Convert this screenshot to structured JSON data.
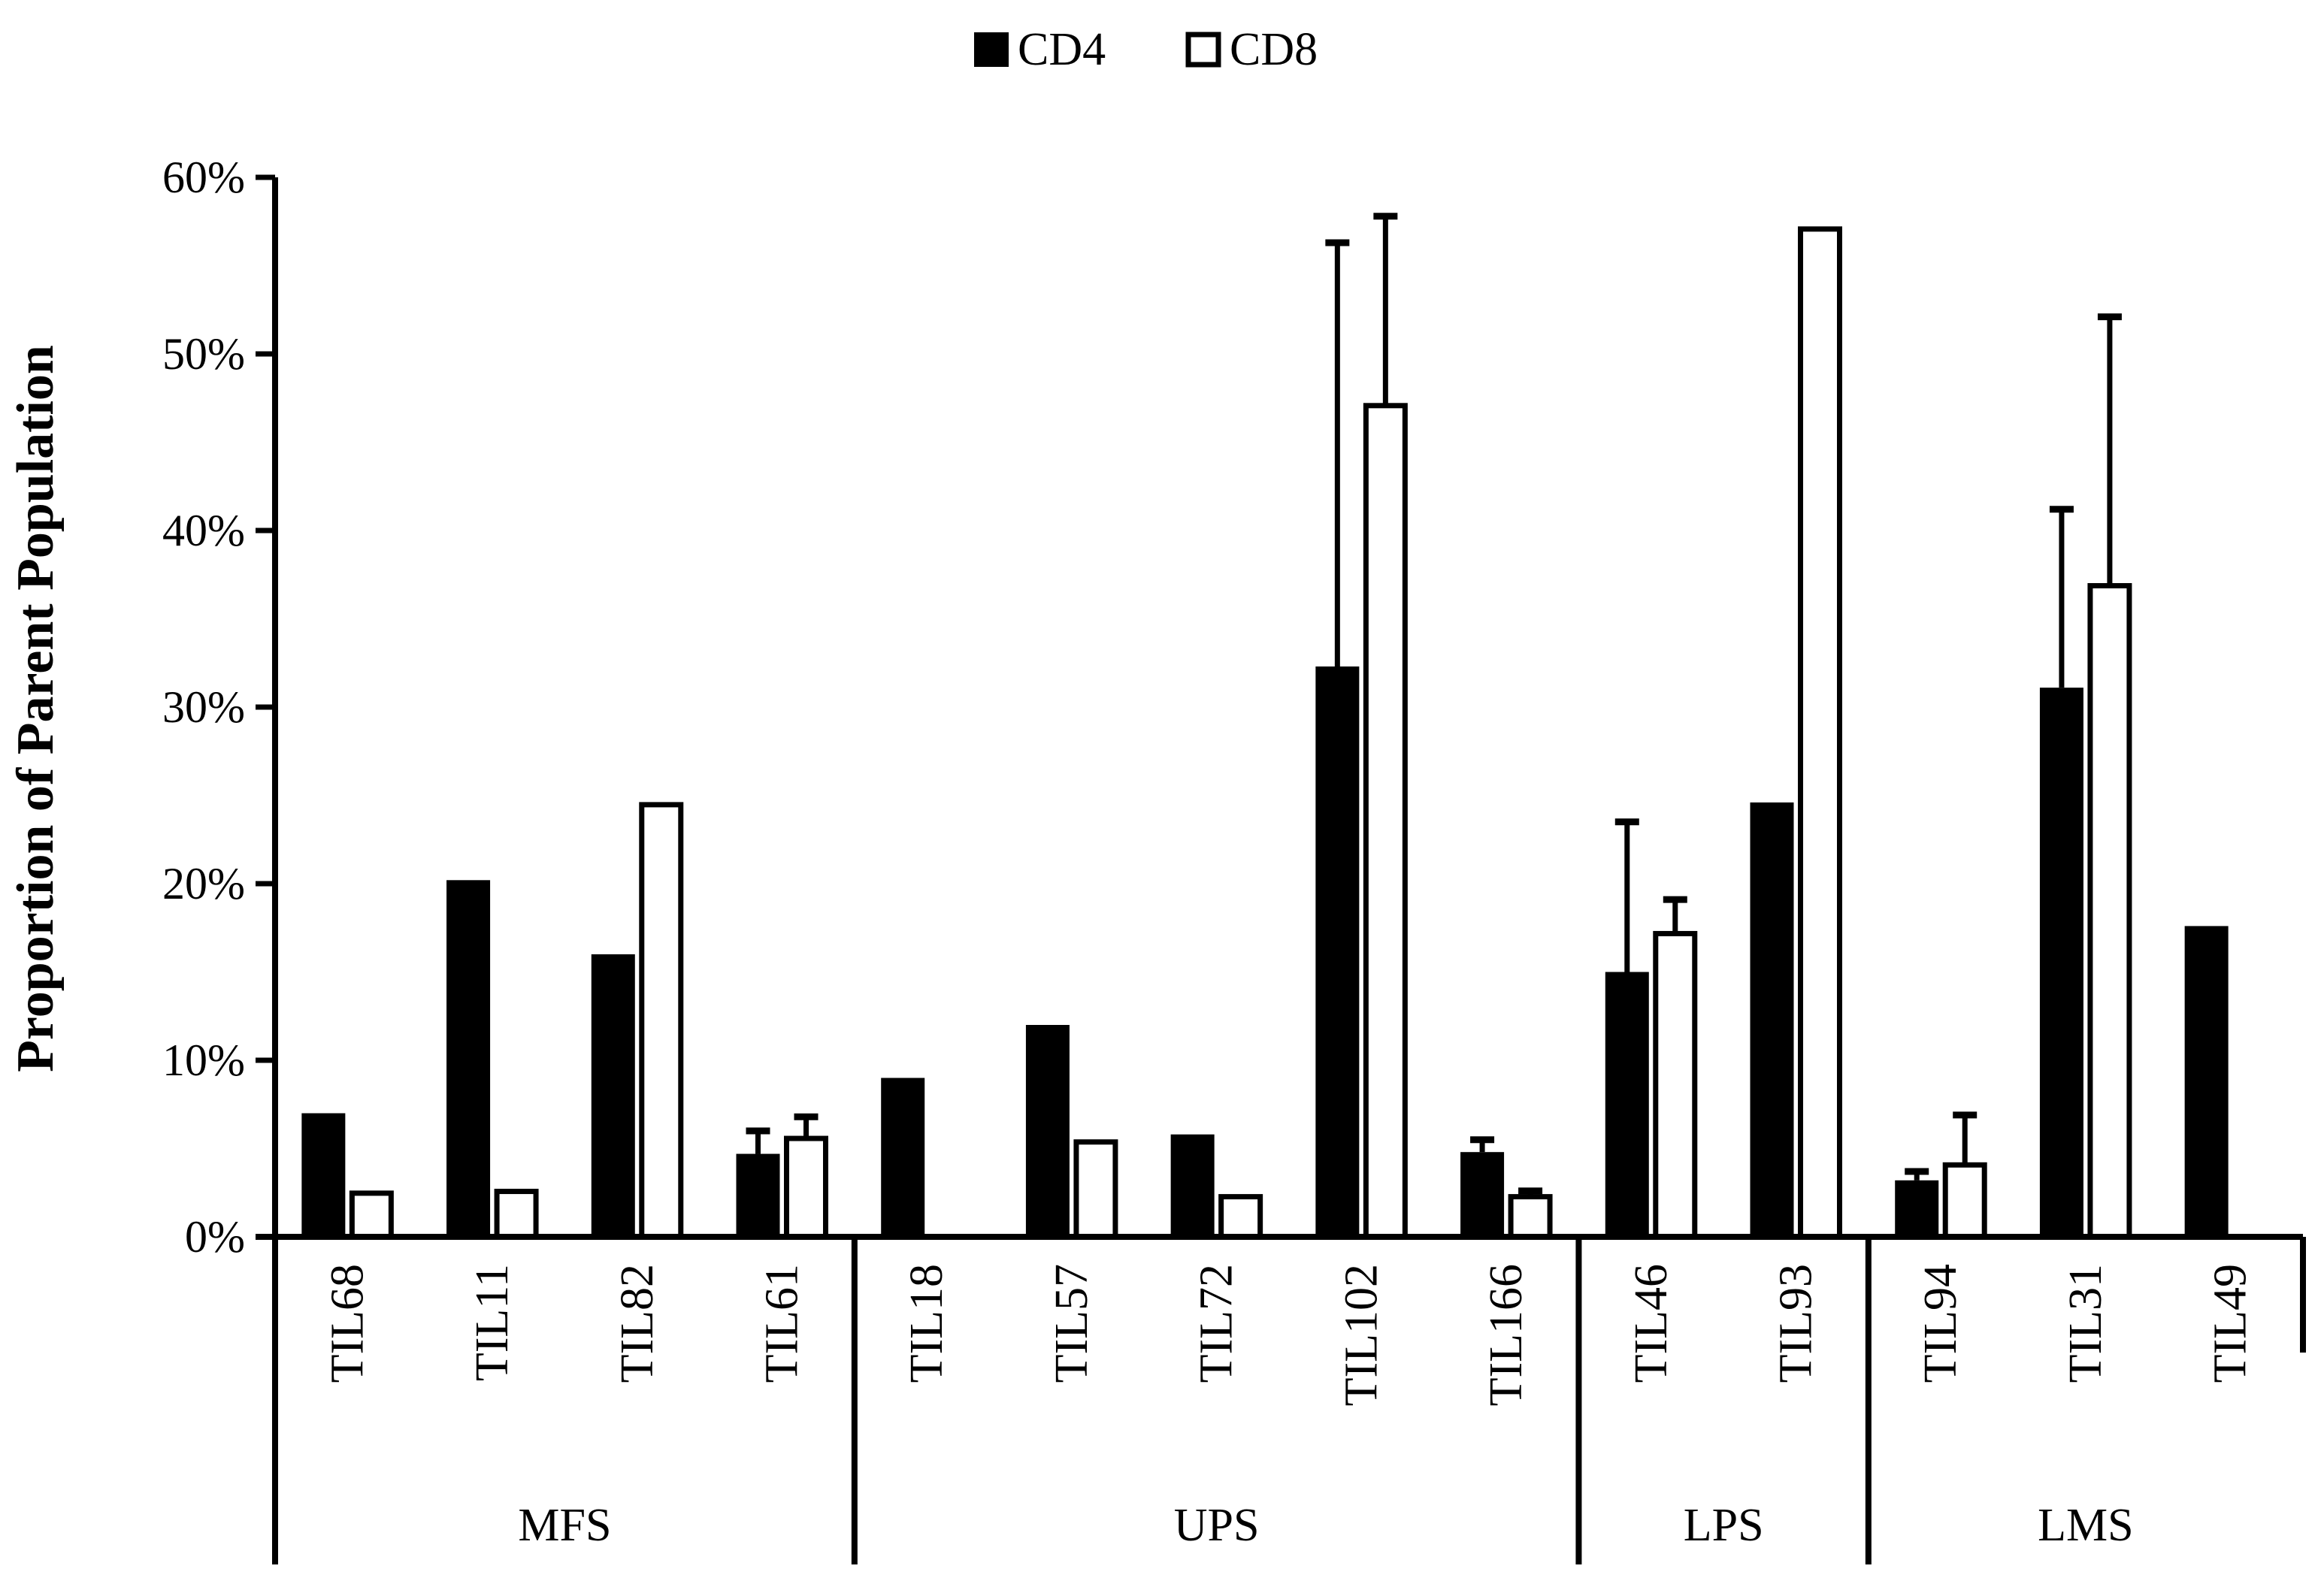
{
  "chart_data": {
    "type": "bar",
    "title": "",
    "xlabel": "",
    "ylabel": "Proportion of Parent Population",
    "ylim": [
      0,
      60
    ],
    "yticks": [
      0,
      10,
      20,
      30,
      40,
      50,
      60
    ],
    "tick_suffix": "%",
    "grid": false,
    "legend_position": "top-center",
    "categories": [
      "TIL68",
      "TIL11",
      "TIL82",
      "TIL61",
      "TIL18",
      "TIL57",
      "TIL72",
      "TIL102",
      "TIL166",
      "TIL46",
      "TIL93",
      "TIL94",
      "TIL31",
      "TIL49"
    ],
    "groups": [
      {
        "label": "MFS",
        "count": 4
      },
      {
        "label": "UPS",
        "count": 5
      },
      {
        "label": "LPS",
        "count": 2
      },
      {
        "label": "LMS",
        "count": 3
      }
    ],
    "series": [
      {
        "name": "CD4",
        "fill": "#000000",
        "values": [
          7.0,
          20.2,
          16.0,
          4.7,
          9.0,
          12.0,
          5.8,
          32.3,
          4.8,
          15.0,
          24.6,
          3.2,
          31.1,
          17.6
        ],
        "errors": [
          0,
          0,
          0,
          1.3,
          0,
          0,
          0,
          24.0,
          0.7,
          8.5,
          0,
          0.5,
          10.1,
          0
        ]
      },
      {
        "name": "CD8",
        "fill": "#ffffff",
        "values": [
          2.6,
          2.7,
          24.6,
          5.7,
          0,
          5.5,
          2.4,
          47.2,
          2.4,
          17.3,
          57.2,
          4.2,
          37.0,
          0
        ],
        "errors": [
          0,
          0,
          0,
          1.1,
          0,
          0,
          0,
          10.6,
          0.2,
          1.8,
          0,
          2.7,
          15.1,
          0
        ]
      }
    ]
  }
}
